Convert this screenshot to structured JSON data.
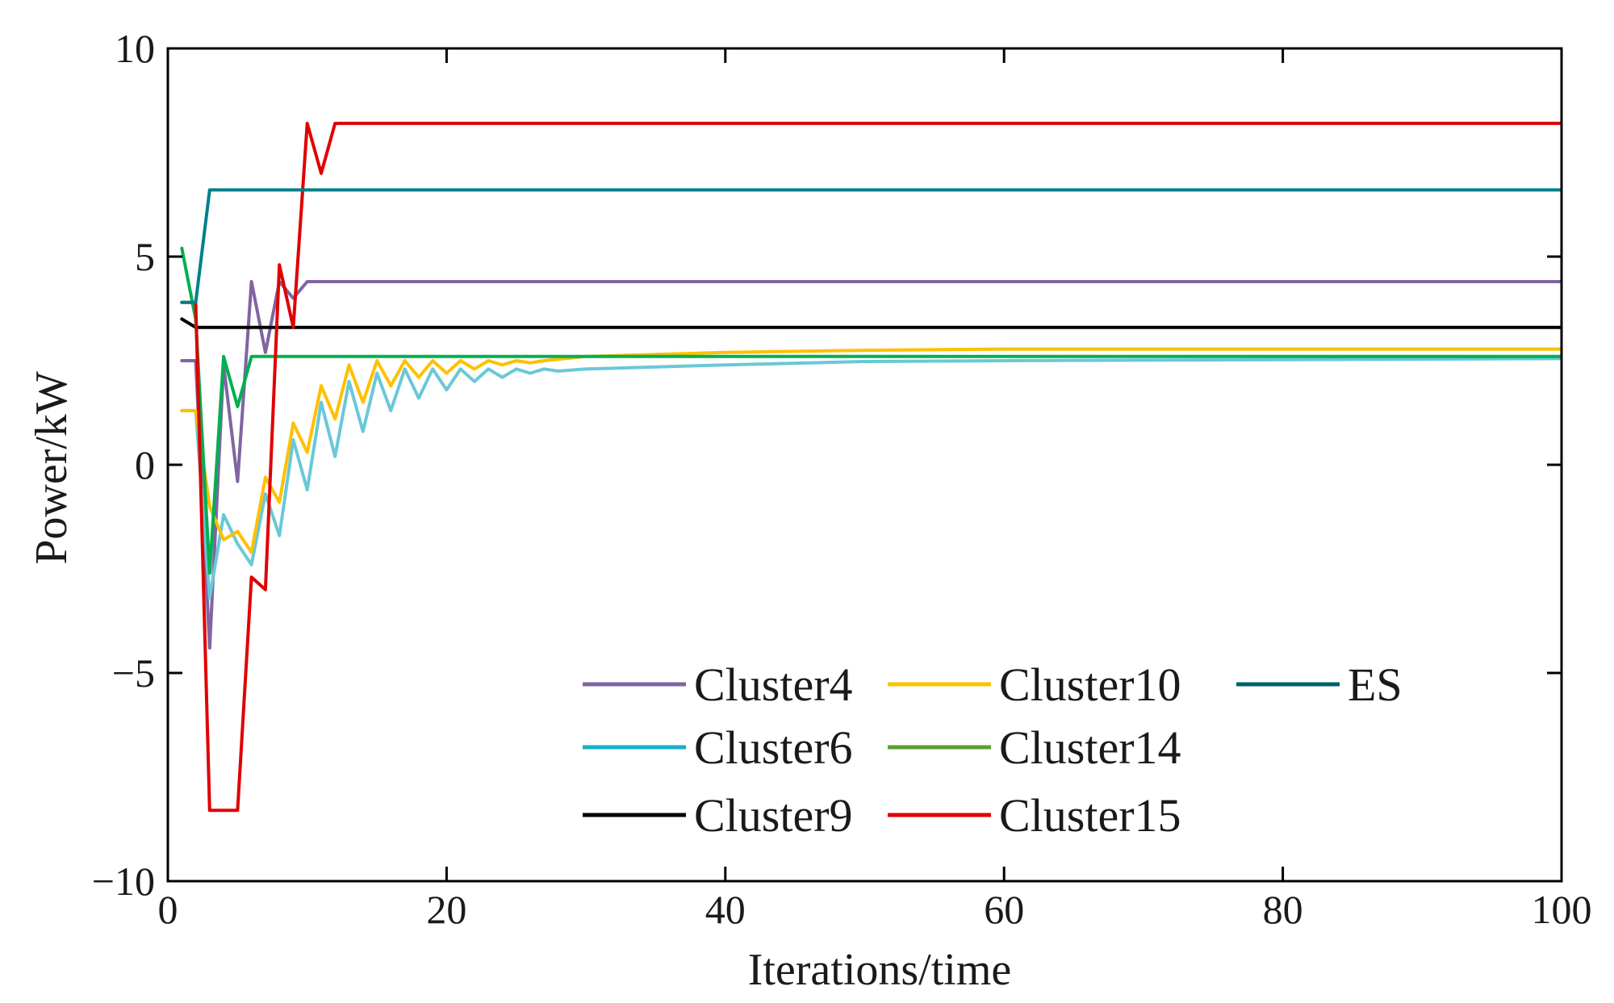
{
  "chart_data": {
    "type": "line",
    "title": "",
    "xlabel": "Iterations/time",
    "ylabel": "Power/kW",
    "xlim": [
      0,
      100
    ],
    "ylim": [
      -10,
      10
    ],
    "xticks": [
      0,
      20,
      40,
      60,
      80,
      100
    ],
    "yticks": [
      10,
      5,
      0,
      -5,
      -10
    ],
    "xtick_labels": [
      "0",
      "20",
      "40",
      "60",
      "80",
      "100"
    ],
    "ytick_labels": [
      "10",
      "5",
      "0",
      "−5",
      "−10"
    ],
    "grid": false,
    "legend_position": "bottom-right",
    "series": [
      {
        "name": "Cluster4",
        "color": "#8064a2",
        "points": [
          [
            1,
            2.5
          ],
          [
            2,
            2.5
          ],
          [
            3,
            -4.4
          ],
          [
            4,
            2.4
          ],
          [
            5,
            -0.4
          ],
          [
            6,
            4.4
          ],
          [
            7,
            2.7
          ],
          [
            8,
            4.4
          ],
          [
            9,
            4.0
          ],
          [
            10,
            4.4
          ],
          [
            11,
            4.4
          ],
          [
            100,
            4.4
          ]
        ]
      },
      {
        "name": "Cluster6",
        "color": "#69c8d8",
        "points": [
          [
            1,
            1.3
          ],
          [
            2,
            1.3
          ],
          [
            3,
            -3.2
          ],
          [
            4,
            -1.2
          ],
          [
            5,
            -1.9
          ],
          [
            6,
            -2.4
          ],
          [
            7,
            -0.7
          ],
          [
            8,
            -1.7
          ],
          [
            9,
            0.6
          ],
          [
            10,
            -0.6
          ],
          [
            11,
            1.5
          ],
          [
            12,
            0.2
          ],
          [
            13,
            2.0
          ],
          [
            14,
            0.8
          ],
          [
            15,
            2.2
          ],
          [
            16,
            1.3
          ],
          [
            17,
            2.3
          ],
          [
            18,
            1.6
          ],
          [
            19,
            2.3
          ],
          [
            20,
            1.8
          ],
          [
            21,
            2.3
          ],
          [
            22,
            2.0
          ],
          [
            23,
            2.3
          ],
          [
            24,
            2.1
          ],
          [
            25,
            2.3
          ],
          [
            26,
            2.2
          ],
          [
            27,
            2.3
          ],
          [
            28,
            2.25
          ],
          [
            30,
            2.3
          ],
          [
            40,
            2.4
          ],
          [
            50,
            2.48
          ],
          [
            60,
            2.5
          ],
          [
            100,
            2.55
          ]
        ]
      },
      {
        "name": "Cluster9",
        "color": "#000000",
        "points": [
          [
            1,
            3.5
          ],
          [
            2,
            3.3
          ],
          [
            100,
            3.3
          ]
        ]
      },
      {
        "name": "Cluster10",
        "color": "#ffc000",
        "points": [
          [
            1,
            1.3
          ],
          [
            2,
            1.3
          ],
          [
            3,
            -1.0
          ],
          [
            4,
            -1.8
          ],
          [
            5,
            -1.6
          ],
          [
            6,
            -2.1
          ],
          [
            7,
            -0.3
          ],
          [
            8,
            -0.9
          ],
          [
            9,
            1.0
          ],
          [
            10,
            0.3
          ],
          [
            11,
            1.9
          ],
          [
            12,
            1.1
          ],
          [
            13,
            2.4
          ],
          [
            14,
            1.5
          ],
          [
            15,
            2.5
          ],
          [
            16,
            1.9
          ],
          [
            17,
            2.5
          ],
          [
            18,
            2.1
          ],
          [
            19,
            2.5
          ],
          [
            20,
            2.2
          ],
          [
            21,
            2.5
          ],
          [
            22,
            2.3
          ],
          [
            23,
            2.5
          ],
          [
            24,
            2.4
          ],
          [
            25,
            2.5
          ],
          [
            26,
            2.45
          ],
          [
            27,
            2.5
          ],
          [
            30,
            2.6
          ],
          [
            40,
            2.7
          ],
          [
            50,
            2.75
          ],
          [
            60,
            2.78
          ],
          [
            100,
            2.78
          ]
        ]
      },
      {
        "name": "Cluster14",
        "color": "#00b050",
        "points": [
          [
            1,
            5.2
          ],
          [
            2,
            3.5
          ],
          [
            3,
            -2.6
          ],
          [
            4,
            2.6
          ],
          [
            5,
            1.4
          ],
          [
            6,
            2.6
          ],
          [
            100,
            2.6
          ]
        ]
      },
      {
        "name": "Cluster15",
        "color": "#e00000",
        "points": [
          [
            1,
            3.9
          ],
          [
            2,
            3.9
          ],
          [
            3,
            -8.3
          ],
          [
            4,
            -8.3
          ],
          [
            5,
            -8.3
          ],
          [
            6,
            -2.7
          ],
          [
            7,
            -3.0
          ],
          [
            8,
            4.8
          ],
          [
            9,
            3.3
          ],
          [
            10,
            8.2
          ],
          [
            11,
            7.0
          ],
          [
            12,
            8.2
          ],
          [
            100,
            8.2
          ]
        ]
      },
      {
        "name": "ES",
        "color": "#00808a",
        "points": [
          [
            1,
            3.9
          ],
          [
            2,
            3.9
          ],
          [
            3,
            6.6
          ],
          [
            100,
            6.6
          ]
        ]
      }
    ],
    "legend_order": [
      "Cluster4",
      "Cluster10",
      "ES",
      "Cluster6",
      "Cluster14",
      "Cluster9",
      "Cluster15"
    ],
    "legend_line_colors": [
      "#8064a2",
      "#ffc000",
      "#006070",
      "#17b0c8",
      "#5a9e32",
      "#000000",
      "#e00000"
    ]
  }
}
